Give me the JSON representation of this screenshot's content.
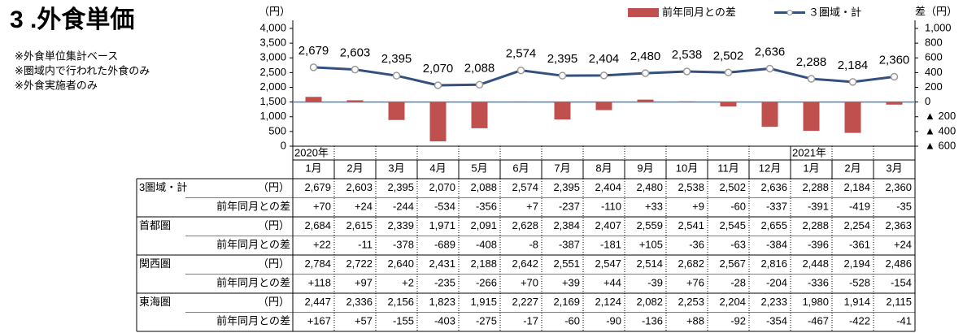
{
  "header": {
    "title": "3 .外食単価",
    "notes": [
      "※外食単位集計ベース",
      "※圏域内で行われた外食のみ",
      "※外食実施者のみ"
    ]
  },
  "chart_data": {
    "type": "bar-line",
    "ylabel": "（円）",
    "y2label": "差（円）",
    "categories": [
      "1月",
      "2月",
      "3月",
      "4月",
      "5月",
      "6月",
      "7月",
      "8月",
      "9月",
      "10月",
      "11月",
      "12月",
      "1月",
      "2月",
      "3月"
    ],
    "years": [
      "2020年",
      null,
      null,
      null,
      null,
      null,
      null,
      null,
      null,
      null,
      null,
      null,
      "2021年",
      null,
      null
    ],
    "series": [
      {
        "name": "前年同月との差",
        "type": "bar",
        "axis": "y2",
        "color": "#c0504d",
        "values": [
          70,
          24,
          -244,
          -534,
          -356,
          7,
          -237,
          -110,
          33,
          9,
          -60,
          -337,
          -391,
          -419,
          -35
        ]
      },
      {
        "name": "３圏域・計",
        "type": "line",
        "color": "#34507f",
        "values": [
          2679,
          2603,
          2395,
          2070,
          2088,
          2574,
          2395,
          2404,
          2480,
          2538,
          2502,
          2636,
          2288,
          2184,
          2360
        ],
        "value_labels": [
          "2,679",
          "2,603",
          "2,395",
          "2,070",
          "2,088",
          "2,574",
          "2,395",
          "2,404",
          "2,480",
          "2,538",
          "2,502",
          "2,636",
          "2,288",
          "2,184",
          "2,360"
        ]
      }
    ],
    "ylim": [
      0,
      4000
    ],
    "yticks": [
      0,
      500,
      {
        "value": 1000,
        "label": "1,000"
      },
      {
        "value": 1500,
        "label": "1,500"
      },
      {
        "value": 2000,
        "label": "2,000"
      },
      {
        "value": 2500,
        "label": "2,500"
      },
      {
        "value": 3000,
        "label": "3,000"
      },
      {
        "value": 3500,
        "label": "3,500"
      },
      {
        "value": 4000,
        "label": "4,000"
      }
    ],
    "y2lim": [
      -600,
      1000
    ],
    "y2ticks": [
      {
        "value": -600,
        "label": "▲ 600"
      },
      {
        "value": -400,
        "label": "▲ 400"
      },
      {
        "value": -200,
        "label": "▲ 200"
      },
      0,
      200,
      400,
      600,
      800,
      {
        "value": 1000,
        "label": "1,000"
      }
    ],
    "legend": "top-right"
  },
  "table": {
    "groups": [
      {
        "name": "3圏域・計",
        "unit": "（円）",
        "values": [
          "2,679",
          "2,603",
          "2,395",
          "2,070",
          "2,088",
          "2,574",
          "2,395",
          "2,404",
          "2,480",
          "2,538",
          "2,502",
          "2,636",
          "2,288",
          "2,184",
          "2,360"
        ],
        "diff_label": "前年同月との差",
        "diffs": [
          "+70",
          "+24",
          "-244",
          "-534",
          "-356",
          "+7",
          "-237",
          "-110",
          "+33",
          "+9",
          "-60",
          "-337",
          "-391",
          "-419",
          "-35"
        ]
      },
      {
        "name": "首都圏",
        "unit": "（円）",
        "values": [
          "2,684",
          "2,615",
          "2,339",
          "1,971",
          "2,091",
          "2,628",
          "2,384",
          "2,407",
          "2,559",
          "2,541",
          "2,545",
          "2,655",
          "2,288",
          "2,254",
          "2,363"
        ],
        "diff_label": "前年同月との差",
        "diffs": [
          "+22",
          "-11",
          "-378",
          "-689",
          "-408",
          "-8",
          "-387",
          "-181",
          "+105",
          "-36",
          "-63",
          "-384",
          "-396",
          "-361",
          "+24"
        ]
      },
      {
        "name": "関西圏",
        "unit": "（円）",
        "values": [
          "2,784",
          "2,722",
          "2,640",
          "2,431",
          "2,188",
          "2,642",
          "2,551",
          "2,547",
          "2,514",
          "2,682",
          "2,567",
          "2,816",
          "2,448",
          "2,194",
          "2,486"
        ],
        "diff_label": "前年同月との差",
        "diffs": [
          "+118",
          "+97",
          "+2",
          "-235",
          "-266",
          "+70",
          "+39",
          "+44",
          "-39",
          "+76",
          "-28",
          "-204",
          "-336",
          "-528",
          "-154"
        ]
      },
      {
        "name": "東海圏",
        "unit": "（円）",
        "values": [
          "2,447",
          "2,336",
          "2,156",
          "1,823",
          "1,915",
          "2,227",
          "2,169",
          "2,124",
          "2,082",
          "2,253",
          "2,204",
          "2,233",
          "1,980",
          "1,914",
          "2,115"
        ],
        "diff_label": "前年同月との差",
        "diffs": [
          "+167",
          "+57",
          "-155",
          "-403",
          "-275",
          "-17",
          "-60",
          "-90",
          "-136",
          "+88",
          "-92",
          "-354",
          "-467",
          "-422",
          "-41"
        ]
      }
    ]
  }
}
